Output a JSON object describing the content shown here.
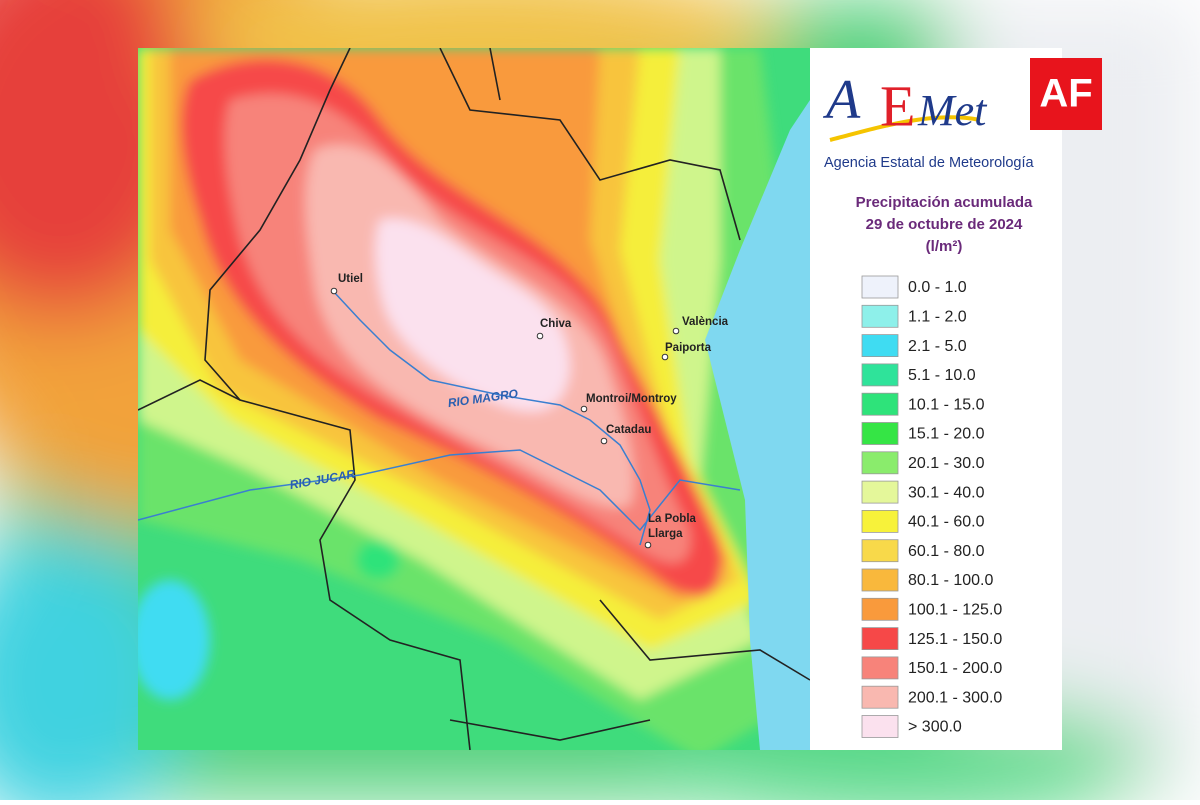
{
  "badge": "AF",
  "logo": {
    "parts": [
      "A",
      "E",
      "Met"
    ],
    "agency": "Agencia Estatal de Meteorología"
  },
  "legend": {
    "title": [
      "Precipitación acumulada",
      "29 de octubre de 2024",
      "(l/m²)"
    ],
    "items": [
      {
        "label": "0.0 - 1.0",
        "color": "#eef2fb"
      },
      {
        "label": "1.1 - 2.0",
        "color": "#8ef0ea"
      },
      {
        "label": "2.1 - 5.0",
        "color": "#3fdcf2"
      },
      {
        "label": "5.1 - 10.0",
        "color": "#2fe39a"
      },
      {
        "label": "10.1 - 15.0",
        "color": "#2ee37a"
      },
      {
        "label": "15.1 - 20.0",
        "color": "#35e545"
      },
      {
        "label": "20.1 - 30.0",
        "color": "#8aec6c"
      },
      {
        "label": "30.1 - 40.0",
        "color": "#e4f79a"
      },
      {
        "label": "40.1 - 60.0",
        "color": "#f7f23a"
      },
      {
        "label": "60.1 - 80.0",
        "color": "#f8d94a"
      },
      {
        "label": "80.1 - 100.0",
        "color": "#f9b83c"
      },
      {
        "label": "100.1 - 125.0",
        "color": "#f99a3c"
      },
      {
        "label": "125.1 - 150.0",
        "color": "#f64848"
      },
      {
        "label": "150.1 - 200.0",
        "color": "#f7837a"
      },
      {
        "label": "200.1 - 300.0",
        "color": "#f9b8b0"
      },
      {
        "label": "> 300.0",
        "color": "#fbe1ee"
      }
    ]
  },
  "places": [
    {
      "lines": [
        "Utiel"
      ]
    },
    {
      "lines": [
        "Chiva"
      ]
    },
    {
      "lines": [
        "València"
      ]
    },
    {
      "lines": [
        "Paiporta"
      ]
    },
    {
      "lines": [
        "Montroi/Montroy"
      ]
    },
    {
      "lines": [
        "Catadau"
      ]
    },
    {
      "lines": [
        "La Pobla",
        "Llarga"
      ]
    }
  ],
  "rivers": [
    "RIO MAGRO",
    "RIO JUCAR"
  ]
}
